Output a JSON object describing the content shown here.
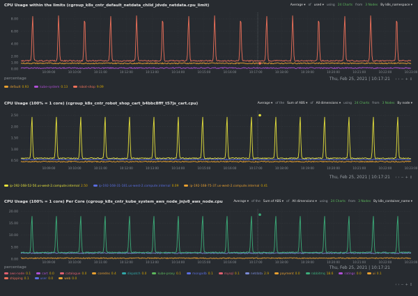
{
  "charts": [
    {
      "title": "CPU Usage within the limits (cgroup_k8s_cntr_default_netdata_child_jdvds_netdata.cpu_limit)",
      "controls": [
        {
          "t": "Average",
          "k": "dd"
        },
        {
          "t": "of",
          "k": "t"
        },
        {
          "t": "used",
          "k": "dd"
        },
        {
          "t": "using",
          "k": "t"
        },
        {
          "t": "24 Charts",
          "k": "g"
        },
        {
          "t": "from",
          "k": "t"
        },
        {
          "t": "3 Nodes",
          "k": "g"
        },
        {
          "t": "By k8s_namespace",
          "k": "dd"
        }
      ],
      "unit": "percentage",
      "date": "Thu, Feb 25, 2021 | 10:17:21",
      "legend": [
        {
          "name": "default",
          "value": "0.93",
          "color": "#e8a030"
        },
        {
          "name": "kube-system",
          "value": "0.13",
          "color": "#b04fd6"
        },
        {
          "name": "robot-shop",
          "value": "9.09",
          "color": "#f0715a"
        }
      ]
    },
    {
      "title": "CPU Usage (100% = 1 core) (cgroup_k8s_cntr_robot_shop_cart_b4bbc8fff_t57js_cart.cpu)",
      "controls": [
        {
          "t": "Average",
          "k": "dd"
        },
        {
          "t": "of the",
          "k": "t"
        },
        {
          "t": "Sum of ABS",
          "k": "dd"
        },
        {
          "t": "of",
          "k": "t"
        },
        {
          "t": "All dimensions",
          "k": "dd"
        },
        {
          "t": "using",
          "k": "t"
        },
        {
          "t": "24 Charts",
          "k": "g"
        },
        {
          "t": "from",
          "k": "t"
        },
        {
          "t": "3 Nodes",
          "k": "g"
        },
        {
          "t": "By node",
          "k": "dd"
        }
      ],
      "unit": "",
      "date": "Thu, Feb 25, 2021 | 10:17:21",
      "legend": [
        {
          "name": "ip-192-168-52-50.us-west-2.compute.internal",
          "value": "2.50",
          "color": "#e8e33c"
        },
        {
          "name": "ip-192-168-31-181.us-west-2.compute.internal",
          "value": "0.09",
          "color": "#5a6ee0"
        },
        {
          "name": "ip-192-168-75-37.us-west-2.compute.internal",
          "value": "0.41",
          "color": "#e8a030"
        }
      ]
    },
    {
      "title": "CPU Usage (100% = 1 core) Per Core (cgroup_k8s_cntr_kube_system_aws_node_jnjv8_aws_node.cpu",
      "controls": [
        {
          "t": "Average",
          "k": "dd"
        },
        {
          "t": "of the",
          "k": "t"
        },
        {
          "t": "Sum of ABS",
          "k": "dd"
        },
        {
          "t": "of",
          "k": "t"
        },
        {
          "t": "All dimensions",
          "k": "dd"
        },
        {
          "t": "using",
          "k": "t"
        },
        {
          "t": "24 Charts",
          "k": "g"
        },
        {
          "t": "from",
          "k": "t"
        },
        {
          "t": "3 Nodes",
          "k": "g"
        },
        {
          "t": "By k8s_container_name",
          "k": "dd"
        }
      ],
      "unit": "percentage",
      "date": "Thu, Feb 25, 2021 | 10:17:21",
      "legend": [
        {
          "name": "aws-node",
          "value": "0.1",
          "color": "#e06070"
        },
        {
          "name": "cart",
          "value": "0.0",
          "color": "#b04fd6"
        },
        {
          "name": "catalogue",
          "value": "0.0",
          "color": "#e06070"
        },
        {
          "name": "coredns",
          "value": "0.4",
          "color": "#e8a030"
        },
        {
          "name": "dispatch",
          "value": "0.0",
          "color": "#30a8a8"
        },
        {
          "name": "kube-proxy",
          "value": "0.1",
          "color": "#5cb85c"
        },
        {
          "name": "mongodb",
          "value": "0.1",
          "color": "#5a6ee0"
        },
        {
          "name": "mysql",
          "value": "0.1",
          "color": "#e06070"
        },
        {
          "name": "netdata",
          "value": "2.9",
          "color": "#7a8ad6"
        },
        {
          "name": "payment",
          "value": "0.0",
          "color": "#e8a030"
        },
        {
          "name": "rabbitmq",
          "value": "18.6",
          "color": "#3cae7a"
        },
        {
          "name": "ratings",
          "value": "0.0",
          "color": "#b04fd6"
        },
        {
          "name": "ui",
          "value": "0.1",
          "color": "#e8a030"
        },
        {
          "name": "shipping",
          "value": "0.1",
          "color": "#f0715a"
        },
        {
          "name": "user",
          "value": "0.0",
          "color": "#5a6ee0"
        },
        {
          "name": "web",
          "value": "0.0",
          "color": "#e8a030"
        }
      ]
    }
  ],
  "chart_data": [
    {
      "type": "line",
      "x": [
        "10:09:00",
        "10:10:00",
        "10:11:00",
        "10:12:00",
        "10:13:00",
        "10:14:00",
        "10:15:00",
        "10:16:00",
        "10:17:00",
        "10:18:00",
        "10:19:00",
        "10:20:00",
        "10:21:00",
        "10:22:00",
        "10:23:00"
      ],
      "yticks": [
        0,
        1,
        2,
        4,
        6,
        8
      ],
      "ylim": [
        0,
        9
      ],
      "series": [
        {
          "name": "robot-shop",
          "color": "#f0715a",
          "baseline": 1.3,
          "peak": 8.6,
          "peaks": 15
        },
        {
          "name": "default",
          "color": "#e8a030",
          "baseline": 0.9,
          "peak": 0.9,
          "peaks": 0
        },
        {
          "name": "kube-system",
          "color": "#b04fd6",
          "baseline": 0.15,
          "peak": 0.15,
          "peaks": 0
        }
      ]
    },
    {
      "type": "line",
      "x": [
        "10:09:00",
        "10:10:00",
        "10:11:00",
        "10:12:00",
        "10:13:00",
        "10:14:00",
        "10:15:00",
        "10:16:00",
        "10:17:00",
        "10:18:00",
        "10:19:00",
        "10:20:00",
        "10:21:00",
        "10:22:00",
        "10:23:00"
      ],
      "yticks": [
        0.5,
        1,
        1.5,
        2,
        2.5
      ],
      "ylim": [
        0.3,
        2.7
      ],
      "series": [
        {
          "name": "ip-192-168-52-50.us-west-2.compute.internal",
          "color": "#e8e33c",
          "baseline": 0.6,
          "peak": 2.5,
          "peaks": 16
        },
        {
          "name": "ip-192-168-75-37.us-west-2.compute.internal",
          "color": "#e8a030",
          "baseline": 0.45,
          "peak": 0.45,
          "peaks": 0
        },
        {
          "name": "ip-192-168-31-181.us-west-2.compute.internal",
          "color": "#5a6ee0",
          "baseline": 0.55,
          "peak": 0.7,
          "peaks": 0
        }
      ]
    },
    {
      "type": "line",
      "x": [
        "10:09:00",
        "10:10:00",
        "10:11:00",
        "10:12:00",
        "10:13:00",
        "10:14:00",
        "10:15:00",
        "10:16:00",
        "10:17:00",
        "10:18:00",
        "10:19:00",
        "10:20:00",
        "10:21:00",
        "10:22:00",
        "10:23:00"
      ],
      "yticks": [
        0,
        5,
        10,
        15,
        20
      ],
      "ylim": [
        0,
        21
      ],
      "series": [
        {
          "name": "rabbitmq",
          "color": "#3cae7a",
          "baseline": 2.8,
          "peak": 18.6,
          "peaks": 16
        },
        {
          "name": "netdata",
          "color": "#7a8ad6",
          "baseline": 2.5,
          "peak": 3,
          "peaks": 0
        },
        {
          "name": "coredns",
          "color": "#e8a030",
          "baseline": 0.4,
          "peak": 0.4,
          "peaks": 0
        }
      ]
    }
  ]
}
